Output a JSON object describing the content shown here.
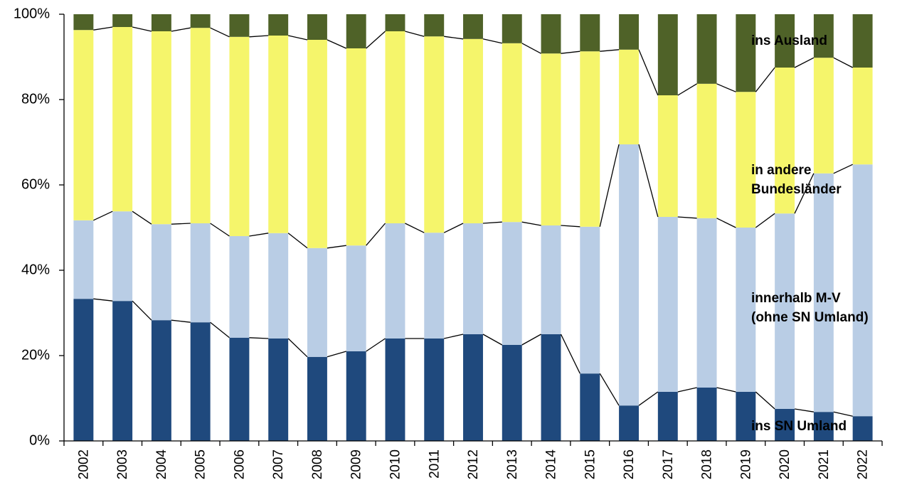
{
  "chart_data": {
    "type": "stacked_bar_100",
    "categories": [
      "2002",
      "2003",
      "2004",
      "2005",
      "2006",
      "2007",
      "2008",
      "2009",
      "2010",
      "2011",
      "2012",
      "2013",
      "2014",
      "2015",
      "2016",
      "2017",
      "2018",
      "2019",
      "2020",
      "2021",
      "2022"
    ],
    "series": [
      {
        "name": [
          "ins SN Umland"
        ],
        "color": "#1f497d",
        "values": [
          33.3,
          32.8,
          28.3,
          27.8,
          24.2,
          24,
          19.7,
          21,
          24,
          24,
          25,
          22.5,
          25,
          15.8,
          8.3,
          11.5,
          12.5,
          11.5,
          7.5,
          6.8,
          5.8
        ]
      },
      {
        "name": [
          "innerhalb  M-V",
          "(ohne SN Umland)"
        ],
        "color": "#b9cde5",
        "values": [
          18.4,
          21,
          22.5,
          23.2,
          23.8,
          24.7,
          25.5,
          24.8,
          27,
          24.8,
          26,
          28.8,
          25.5,
          34.4,
          61.2,
          41,
          39.7,
          38.5,
          45.8,
          55.9,
          59
        ]
      },
      {
        "name": [
          "in andere",
          "Bundesländer"
        ],
        "color": "#f5f56b",
        "values": [
          44.6,
          43.2,
          45.2,
          45.8,
          46.7,
          46.3,
          48.8,
          46.2,
          45,
          46,
          43.2,
          41.9,
          40.3,
          41.1,
          22.2,
          28.5,
          31.5,
          31.8,
          34.2,
          27.1,
          22.7
        ]
      },
      {
        "name": [
          "ins Ausland"
        ],
        "color": "#4f6228",
        "values": [
          3.7,
          3,
          4,
          3.2,
          5.3,
          5,
          6,
          8,
          4,
          5.2,
          5.8,
          6.8,
          9.2,
          8.7,
          8.3,
          19,
          16.3,
          18.2,
          12.5,
          10.2,
          12.5
        ]
      }
    ],
    "ylim": [
      0,
      100
    ],
    "yticks": [
      {
        "value": 0,
        "label": "0%"
      },
      {
        "value": 20,
        "label": "20%"
      },
      {
        "value": 40,
        "label": "40%"
      },
      {
        "value": 60,
        "label": "60%"
      },
      {
        "value": 80,
        "label": "80%"
      },
      {
        "value": 100,
        "label": "100%"
      }
    ],
    "series_lines": true
  }
}
